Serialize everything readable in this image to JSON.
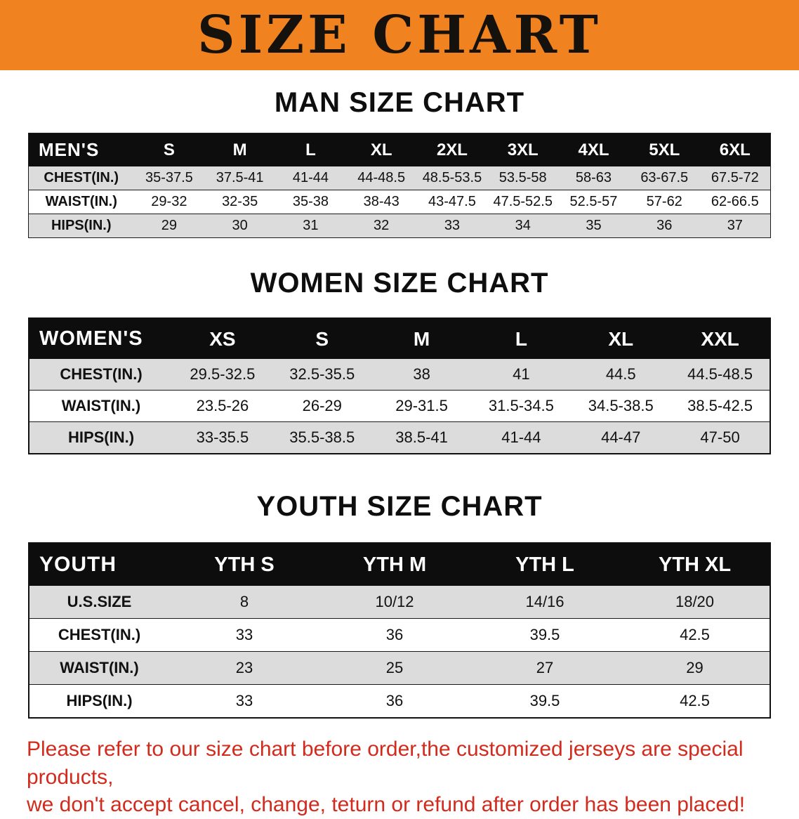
{
  "banner": {
    "title": "SIZE CHART"
  },
  "colors": {
    "banner_bg": "#F0831F",
    "banner_text": "#15120E",
    "table_header_bg": "#0D0D0D",
    "table_header_text": "#FFFFFF",
    "row_alt_bg": "#DCDCDC",
    "row_bg": "#FFFFFF",
    "footer_text": "#D22B1D"
  },
  "chart_data": [
    {
      "type": "table",
      "title": "MAN SIZE CHART",
      "header": [
        "MEN'S",
        "S",
        "M",
        "L",
        "XL",
        "2XL",
        "3XL",
        "4XL",
        "5XL",
        "6XL"
      ],
      "rows": [
        [
          "CHEST(IN.)",
          "35-37.5",
          "37.5-41",
          "41-44",
          "44-48.5",
          "48.5-53.5",
          "53.5-58",
          "58-63",
          "63-67.5",
          "67.5-72"
        ],
        [
          "WAIST(IN.)",
          "29-32",
          "32-35",
          "35-38",
          "38-43",
          "43-47.5",
          "47.5-52.5",
          "52.5-57",
          "57-62",
          "62-66.5"
        ],
        [
          "HIPS(IN.)",
          "29",
          "30",
          "31",
          "32",
          "33",
          "34",
          "35",
          "36",
          "37"
        ]
      ]
    },
    {
      "type": "table",
      "title": "WOMEN SIZE CHART",
      "header": [
        "WOMEN'S",
        "XS",
        "S",
        "M",
        "L",
        "XL",
        "XXL"
      ],
      "rows": [
        [
          "CHEST(IN.)",
          "29.5-32.5",
          "32.5-35.5",
          "38",
          "41",
          "44.5",
          "44.5-48.5"
        ],
        [
          "WAIST(IN.)",
          "23.5-26",
          "26-29",
          "29-31.5",
          "31.5-34.5",
          "34.5-38.5",
          "38.5-42.5"
        ],
        [
          "HIPS(IN.)",
          "33-35.5",
          "35.5-38.5",
          "38.5-41",
          "41-44",
          "44-47",
          "47-50"
        ]
      ]
    },
    {
      "type": "table",
      "title": "YOUTH SIZE CHART",
      "header": [
        "YOUTH",
        "YTH S",
        "YTH M",
        "YTH L",
        "YTH XL"
      ],
      "rows": [
        [
          "U.S.SIZE",
          "8",
          "10/12",
          "14/16",
          "18/20"
        ],
        [
          "CHEST(IN.)",
          "33",
          "36",
          "39.5",
          "42.5"
        ],
        [
          "WAIST(IN.)",
          "23",
          "25",
          "27",
          "29"
        ],
        [
          "HIPS(IN.)",
          "33",
          "36",
          "39.5",
          "42.5"
        ]
      ]
    }
  ],
  "footer": {
    "line1": "Please refer to our size chart before order,the customized jerseys are special products,",
    "line2": "we don't accept cancel, change, teturn or refund after order has been placed!"
  }
}
